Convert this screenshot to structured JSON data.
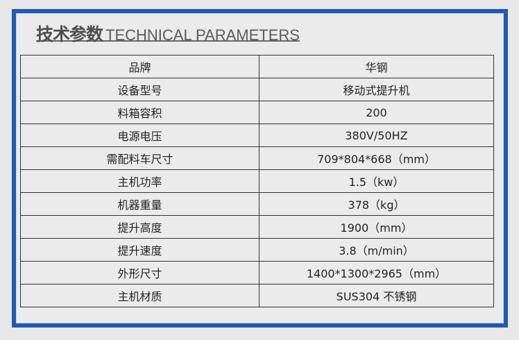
{
  "title": {
    "cn": "技术参数",
    "en": "TECHNICAL PARAMETERS"
  },
  "colors": {
    "frame": "#1f5bb0",
    "background": "#ebebeb"
  },
  "rows": [
    {
      "label": "品牌",
      "value": "华钢"
    },
    {
      "label": "设备型号",
      "value": "移动式提升机"
    },
    {
      "label": "料箱容积",
      "value": "200"
    },
    {
      "label": "电源电压",
      "value": "380V/50HZ"
    },
    {
      "label": "需配料车尺寸",
      "value": "709*804*668（mm）"
    },
    {
      "label": "主机功率",
      "value": "1.5（kw）"
    },
    {
      "label": "机器重量",
      "value": "378（kg）"
    },
    {
      "label": "提升高度",
      "value": "1900（mm）"
    },
    {
      "label": "提升速度",
      "value": "3.8（m/min）"
    },
    {
      "label": "外形尺寸",
      "value": "1400*1300*2965（mm）"
    },
    {
      "label": "主机材质",
      "value": "SUS304 不锈钢"
    }
  ]
}
